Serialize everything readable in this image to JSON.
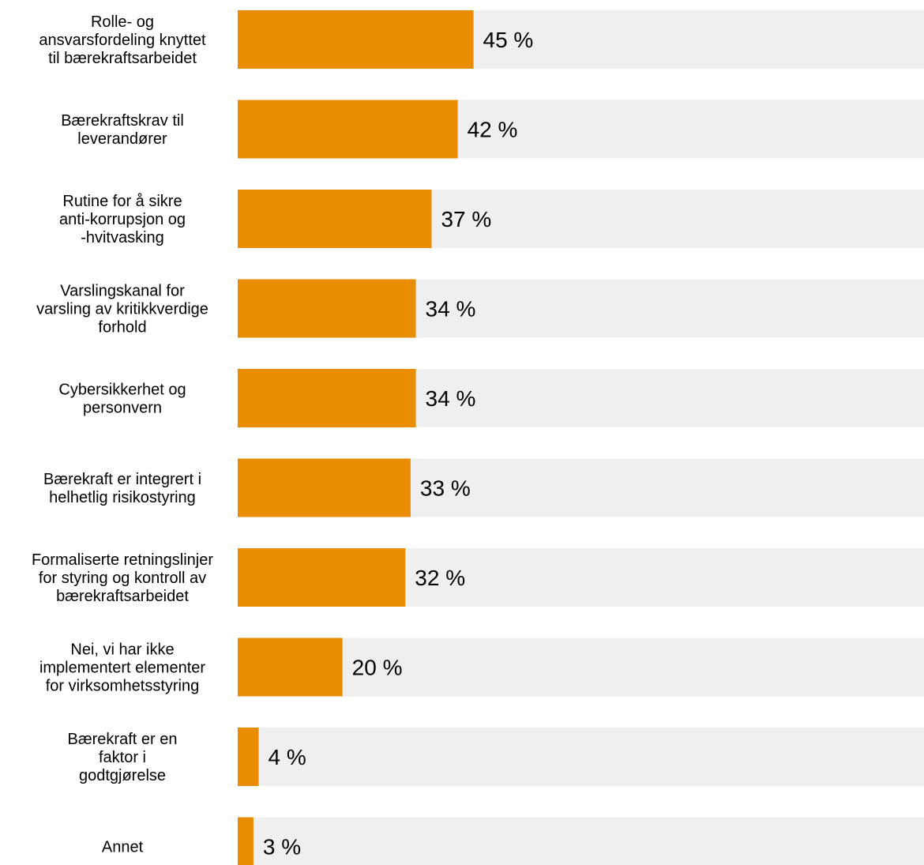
{
  "chart_data": {
    "type": "bar",
    "orientation": "horizontal",
    "categories": [
      [
        "Rolle- og",
        "ansvarsfordeling knyttet",
        "til bærekraftsarbeidet"
      ],
      [
        "Bærekraftskrav til",
        "leverandører"
      ],
      [
        "Rutine for å sikre",
        "anti-korrupsjon og",
        "-hvitvasking"
      ],
      [
        "Varslingskanal for",
        "varsling av kritikkverdige",
        "forhold"
      ],
      [
        "Cybersikkerhet og",
        "personvern"
      ],
      [
        "Bærekraft er integrert i",
        "helhetlig risikostyring"
      ],
      [
        "Formaliserte retningslinjer",
        "for styring og kontroll av",
        "bærekraftsarbeidet"
      ],
      [
        "Nei, vi har ikke",
        "implementert elementer",
        "for virksomhetsstyring"
      ],
      [
        "Bærekraft er en",
        "faktor i",
        "godtgjørelse"
      ],
      [
        "Annet"
      ]
    ],
    "values": [
      45,
      42,
      37,
      34,
      34,
      33,
      32,
      20,
      4,
      3
    ],
    "value_labels": [
      "45 %",
      "42 %",
      "37 %",
      "34 %",
      "34 %",
      "33 %",
      "32 %",
      "20 %",
      "4 %",
      "3 %"
    ],
    "xlim": [
      0,
      131
    ],
    "legend": "none",
    "grid": false
  },
  "colors": {
    "bar": "#e98c00",
    "track": "#efefef",
    "text": "#000000"
  }
}
